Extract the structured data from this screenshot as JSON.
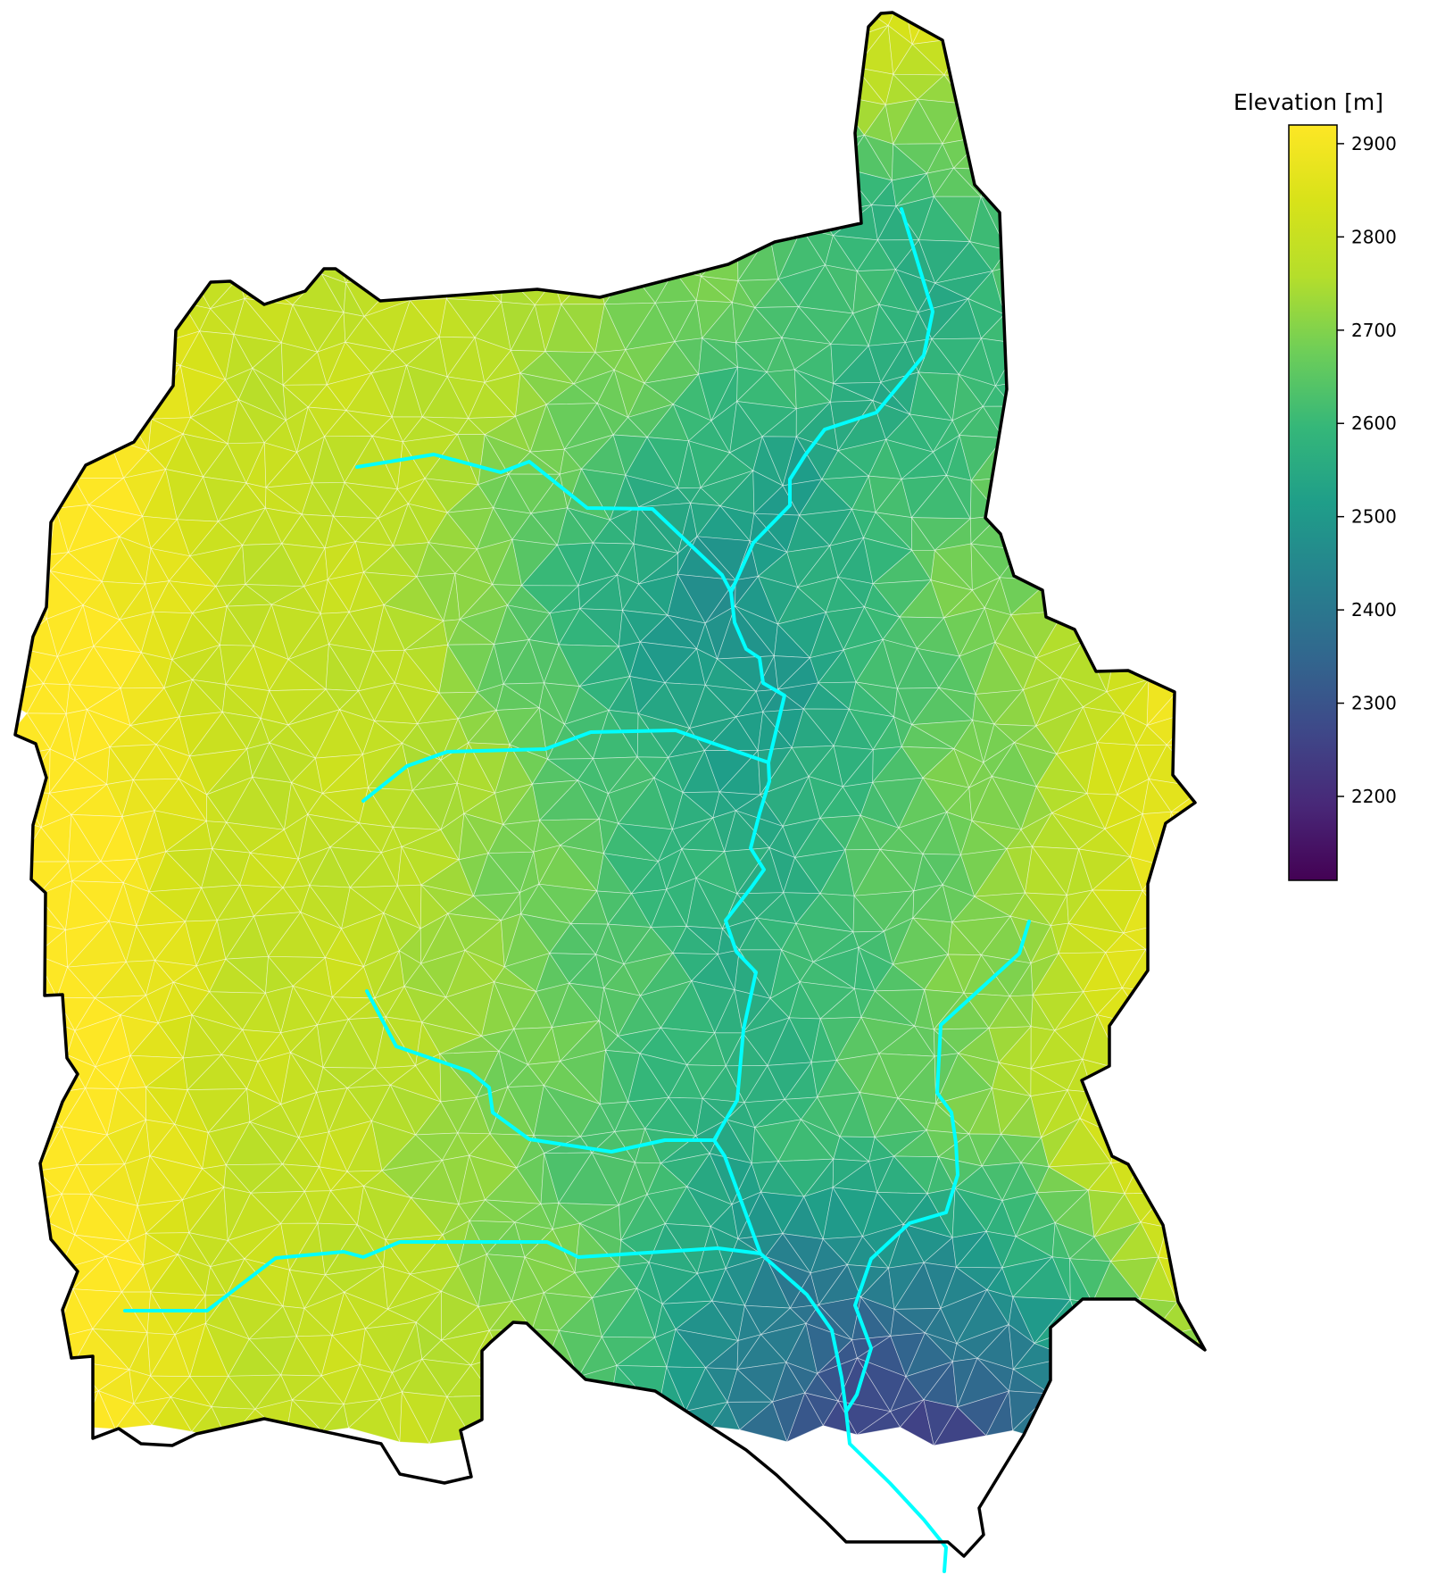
{
  "colorbar": {
    "title": "Elevation [m]",
    "min": 2110,
    "max": 2920,
    "ticks": [
      2900,
      2800,
      2700,
      2600,
      2500,
      2400,
      2300,
      2200
    ],
    "colormap": "viridis"
  },
  "colors": {
    "river": "#00ffff",
    "boundary": "#000000",
    "mesh_lines": "#ffffff"
  },
  "map": {
    "mesh": "triangular",
    "contains_river_network": true
  }
}
